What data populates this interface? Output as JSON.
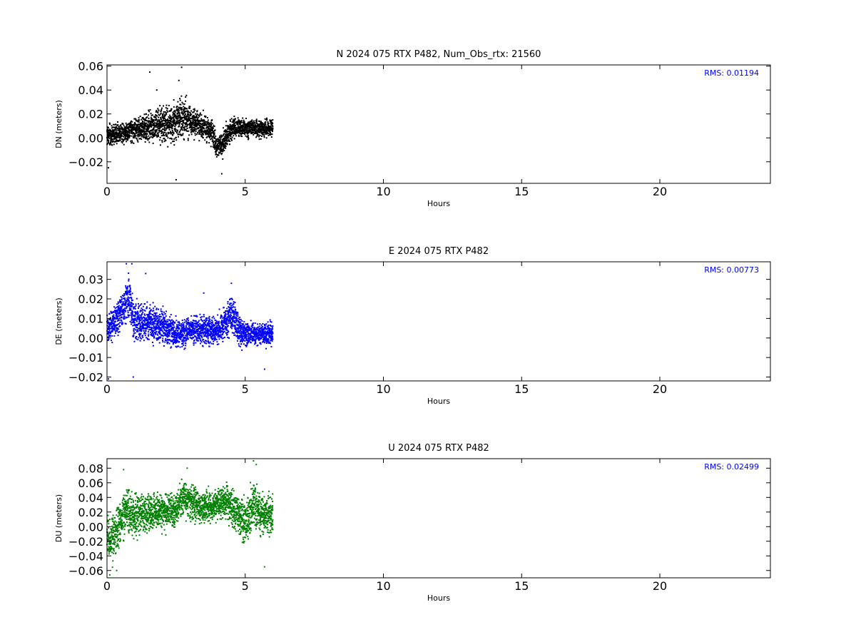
{
  "chart_data": [
    {
      "type": "scatter",
      "title": "N 2024 075 RTX  P482, Num_Obs_rtx: 21560",
      "xlabel": "Hours",
      "ylabel": "DN (meters)",
      "xlim": [
        0,
        24
      ],
      "ylim": [
        -0.038,
        0.061
      ],
      "xticks": [
        0,
        5,
        10,
        15,
        20
      ],
      "yticks": [
        -0.02,
        0.0,
        0.02,
        0.04,
        0.06
      ],
      "ytick_labels": [
        "−0.02",
        "0.00",
        "0.02",
        "0.04",
        "0.06"
      ],
      "color": "#000000",
      "annotation": "RMS:  0.01194",
      "annotation_color": "#0000ff",
      "series": [
        {
          "trend_x": [
            0.0,
            0.3,
            0.6,
            1.0,
            1.4,
            1.8,
            2.2,
            2.5,
            2.8,
            3.1,
            3.5,
            3.8,
            4.0,
            4.2,
            4.5,
            4.8,
            5.2,
            5.6,
            6.0
          ],
          "trend_y": [
            0.002,
            0.003,
            0.005,
            0.007,
            0.009,
            0.01,
            0.011,
            0.014,
            0.018,
            0.013,
            0.01,
            0.004,
            -0.008,
            -0.004,
            0.008,
            0.008,
            0.008,
            0.008,
            0.008
          ],
          "spread": [
            0.014,
            0.012,
            0.012,
            0.014,
            0.016,
            0.018,
            0.022,
            0.026,
            0.024,
            0.016,
            0.016,
            0.014,
            0.014,
            0.016,
            0.014,
            0.01,
            0.01,
            0.01,
            0.01
          ],
          "outliers": [
            [
              1.55,
              0.055
            ],
            [
              2.7,
              0.059
            ],
            [
              2.6,
              0.048
            ],
            [
              2.5,
              -0.035
            ],
            [
              4.15,
              -0.03
            ],
            [
              0.05,
              -0.025
            ],
            [
              1.8,
              0.04
            ]
          ]
        }
      ]
    },
    {
      "type": "scatter",
      "title": "E 2024 075 RTX  P482",
      "xlabel": "Hours",
      "ylabel": "DE (meters)",
      "xlim": [
        0,
        24
      ],
      "ylim": [
        -0.022,
        0.039
      ],
      "xticks": [
        0,
        5,
        10,
        15,
        20
      ],
      "yticks": [
        -0.02,
        -0.01,
        0.0,
        0.01,
        0.02,
        0.03
      ],
      "ytick_labels": [
        "−0.02",
        "−0.01",
        "0.00",
        "0.01",
        "0.02",
        "0.03"
      ],
      "color": "#0000ff",
      "annotation": "RMS:  0.00773",
      "annotation_color": "#0000ff",
      "series": [
        {
          "trend_x": [
            0.0,
            0.3,
            0.6,
            0.8,
            1.0,
            1.5,
            2.0,
            2.5,
            3.0,
            3.5,
            4.0,
            4.3,
            4.5,
            4.8,
            5.2,
            5.6,
            6.0
          ],
          "trend_y": [
            0.004,
            0.008,
            0.016,
            0.02,
            0.008,
            0.008,
            0.006,
            0.002,
            0.004,
            0.004,
            0.004,
            0.008,
            0.012,
            0.003,
            0.002,
            0.002,
            0.002
          ],
          "spread": [
            0.012,
            0.012,
            0.014,
            0.016,
            0.014,
            0.013,
            0.012,
            0.01,
            0.01,
            0.01,
            0.01,
            0.012,
            0.014,
            0.01,
            0.008,
            0.008,
            0.008
          ],
          "outliers": [
            [
              0.7,
              0.038
            ],
            [
              0.9,
              0.038
            ],
            [
              1.4,
              0.033
            ],
            [
              0.05,
              -0.021
            ],
            [
              0.95,
              -0.02
            ],
            [
              3.5,
              0.023
            ],
            [
              4.5,
              0.028
            ],
            [
              5.7,
              -0.016
            ]
          ]
        }
      ]
    },
    {
      "type": "scatter",
      "title": "U 2024 075 RTX  P482",
      "xlabel": "Hours",
      "ylabel": "DU (meters)",
      "xlim": [
        0,
        24
      ],
      "ylim": [
        -0.07,
        0.093
      ],
      "xticks": [
        0,
        5,
        10,
        15,
        20
      ],
      "yticks": [
        -0.06,
        -0.04,
        -0.02,
        0.0,
        0.02,
        0.04,
        0.06,
        0.08
      ],
      "ytick_labels": [
        "−0.06",
        "−0.04",
        "−0.02",
        "0.00",
        "0.02",
        "0.04",
        "0.06",
        "0.08"
      ],
      "color": "#008000",
      "annotation": "RMS:  0.02499",
      "annotation_color": "#0000ff",
      "series": [
        {
          "trend_x": [
            0.0,
            0.2,
            0.4,
            0.7,
            1.0,
            1.5,
            2.0,
            2.5,
            2.7,
            3.0,
            3.5,
            4.0,
            4.3,
            4.7,
            5.0,
            5.3,
            5.6,
            6.0
          ],
          "trend_y": [
            -0.015,
            -0.02,
            0.0,
            0.025,
            0.015,
            0.02,
            0.02,
            0.022,
            0.038,
            0.035,
            0.025,
            0.03,
            0.035,
            0.02,
            0.005,
            0.03,
            0.015,
            0.015
          ],
          "spread": [
            0.04,
            0.045,
            0.04,
            0.045,
            0.04,
            0.035,
            0.035,
            0.03,
            0.035,
            0.035,
            0.03,
            0.03,
            0.035,
            0.035,
            0.04,
            0.045,
            0.04,
            0.035
          ],
          "outliers": [
            [
              0.6,
              0.078
            ],
            [
              2.9,
              0.08
            ],
            [
              5.3,
              0.09
            ],
            [
              5.4,
              0.085
            ],
            [
              0.1,
              -0.066
            ],
            [
              0.35,
              -0.06
            ],
            [
              5.7,
              -0.055
            ]
          ]
        }
      ]
    }
  ]
}
